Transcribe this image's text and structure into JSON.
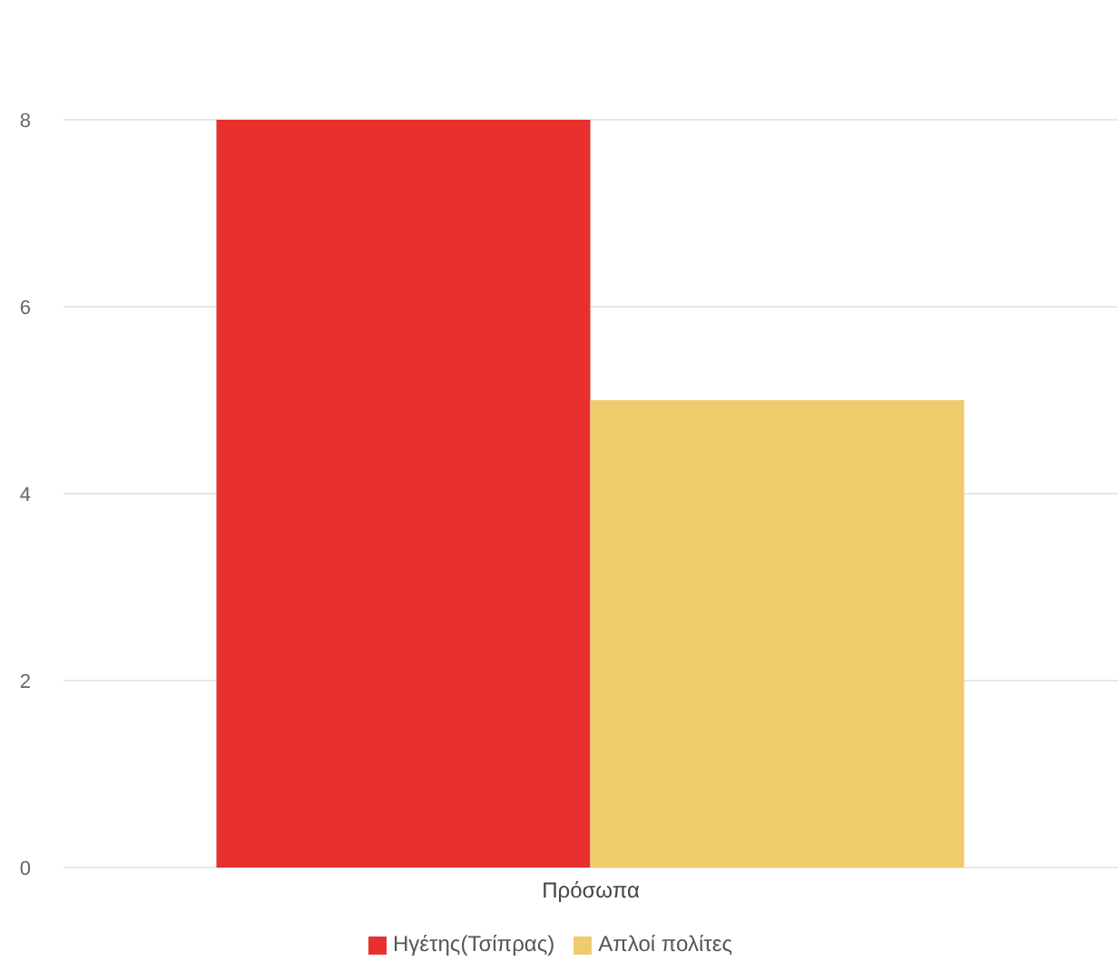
{
  "chart_data": {
    "type": "bar",
    "categories": [
      "Πρόσωπα"
    ],
    "series": [
      {
        "name": "Ηγέτης(Τσίπρας)",
        "color": "#e8302e",
        "values": [
          8
        ]
      },
      {
        "name": "Απλοί πολίτες",
        "color": "#f0cb6b",
        "values": [
          5
        ]
      }
    ],
    "ylim": [
      0,
      8
    ],
    "yticks": [
      0,
      2,
      4,
      6,
      8
    ],
    "grid": "y",
    "legend": "bottom"
  }
}
